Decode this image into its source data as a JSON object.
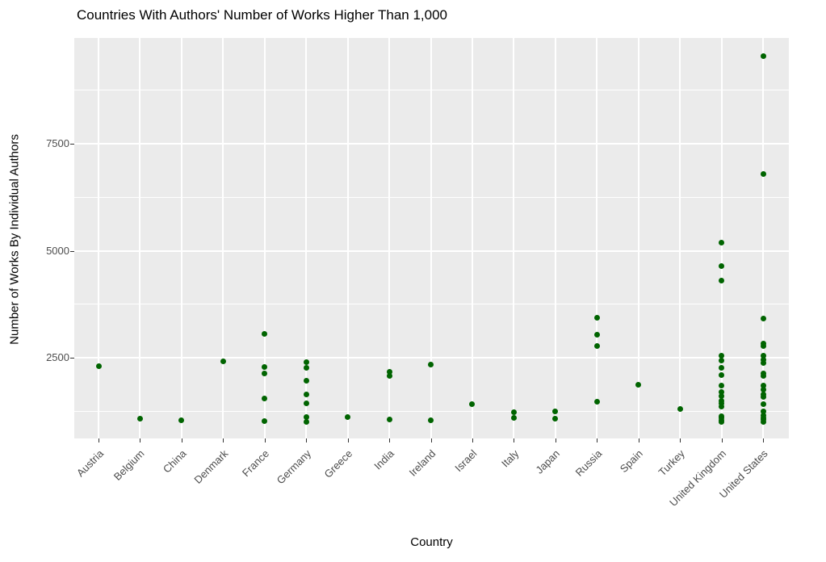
{
  "title": "Countries With Authors' Number of Works Higher Than 1,000",
  "x_axis": {
    "label": "Country"
  },
  "y_axis": {
    "label": "Number of Works By Individual Authors"
  },
  "chart_data": {
    "type": "scatter",
    "title": "Countries With Authors' Number of Works Higher Than 1,000",
    "xlabel": "Country",
    "ylabel": "Number of Works By Individual Authors",
    "ylim": [
      600,
      10000
    ],
    "yticks": [
      2500,
      5000,
      7500
    ],
    "minor_gridlines": [
      1250,
      3750,
      6250,
      8750
    ],
    "grid": "on",
    "legend": "none",
    "point_color": "#006400",
    "panel_background": "#ebebeb",
    "categories": [
      "Austria",
      "Belgium",
      "China",
      "Denmark",
      "France",
      "Germany",
      "Greece",
      "India",
      "Ireland",
      "Israel",
      "Italy",
      "Japan",
      "Russia",
      "Spain",
      "Turkey",
      "United Kingdom",
      "United States"
    ],
    "series": [
      {
        "country": "Austria",
        "values": [
          2310
        ]
      },
      {
        "country": "Belgium",
        "values": [
          1070
        ]
      },
      {
        "country": "China",
        "values": [
          1030
        ]
      },
      {
        "country": "Denmark",
        "values": [
          2410
        ]
      },
      {
        "country": "France",
        "values": [
          3050,
          2290,
          2140,
          1550,
          1020
        ]
      },
      {
        "country": "Germany",
        "values": [
          2390,
          2270,
          1960,
          1650,
          1440,
          1120,
          1000
        ]
      },
      {
        "country": "Greece",
        "values": [
          1120
        ]
      },
      {
        "country": "India",
        "values": [
          2170,
          2070,
          1060
        ]
      },
      {
        "country": "Ireland",
        "values": [
          2340,
          1030
        ]
      },
      {
        "country": "Israel",
        "values": [
          1410
        ]
      },
      {
        "country": "Italy",
        "values": [
          1230,
          1090
        ]
      },
      {
        "country": "Japan",
        "values": [
          1250,
          1070
        ]
      },
      {
        "country": "Russia",
        "values": [
          3430,
          3030,
          2770,
          1480
        ]
      },
      {
        "country": "Spain",
        "values": [
          1860
        ]
      },
      {
        "country": "Turkey",
        "values": [
          1310
        ]
      },
      {
        "country": "United Kingdom",
        "values": [
          5190,
          4650,
          4300,
          2540,
          2430,
          2270,
          2090,
          1850,
          1700,
          1610,
          1500,
          1430,
          1360,
          1140,
          1090,
          1040,
          1000
        ]
      },
      {
        "country": "United States",
        "values": [
          9550,
          6800,
          3420,
          2830,
          2770,
          2540,
          2450,
          2370,
          2140,
          2080,
          1840,
          1750,
          1650,
          1580,
          1410,
          1240,
          1160,
          1100,
          1050,
          1000
        ]
      }
    ]
  }
}
